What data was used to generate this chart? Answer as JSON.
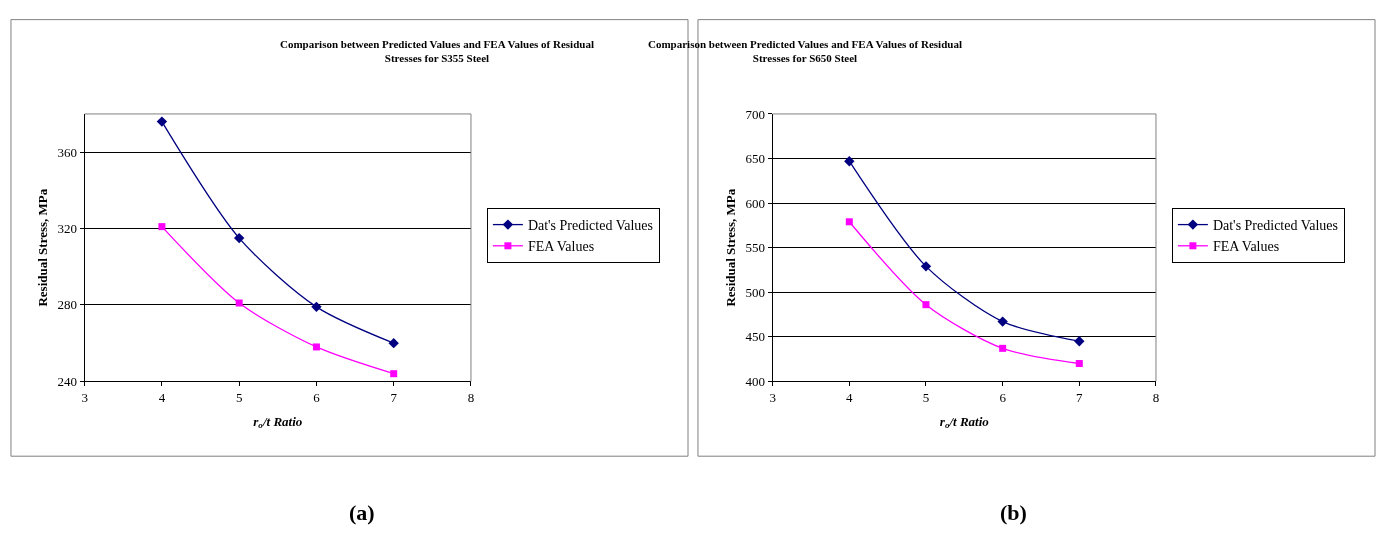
{
  "chart_data": [
    {
      "type": "line",
      "title": "Comparison between Predicted Values and FEA Values of Residual Stresses for S355 Steel",
      "xlabel": "r$_{o}$/t Ratio",
      "ylabel": "Residual Stress, MPa",
      "x": [
        4,
        5,
        6,
        7
      ],
      "series": [
        {
          "name": "Dat's Predicted Values",
          "color": "#000080",
          "marker": "diamond",
          "values": [
            376,
            315,
            279,
            260
          ]
        },
        {
          "name": "FEA Values",
          "color": "#ff00ff",
          "marker": "square",
          "values": [
            321,
            281,
            258,
            244
          ]
        }
      ],
      "xlim": [
        3,
        8
      ],
      "xticks": [
        3,
        4,
        5,
        6,
        7,
        8
      ],
      "ylim": [
        240,
        380
      ],
      "yticks": [
        240,
        280,
        320,
        360
      ],
      "grid": "y",
      "legend": "right",
      "annotations": [
        "(a)"
      ]
    },
    {
      "type": "line",
      "title": "Comparison between Predicted Values and FEA Values of Residual Stresses for S650 Steel",
      "xlabel": "r$_{o}$/t Ratio",
      "ylabel": "Residual Stress, MPa",
      "x": [
        4,
        5,
        6,
        7
      ],
      "series": [
        {
          "name": "Dat's Predicted Values",
          "color": "#000080",
          "marker": "diamond",
          "values": [
            647,
            529,
            467,
            445
          ]
        },
        {
          "name": "FEA Values",
          "color": "#ff00ff",
          "marker": "square",
          "values": [
            579,
            486,
            437,
            420
          ]
        }
      ],
      "xlim": [
        3,
        8
      ],
      "xticks": [
        3,
        4,
        5,
        6,
        7,
        8
      ],
      "ylim": [
        400,
        700
      ],
      "yticks": [
        400,
        450,
        500,
        550,
        600,
        650,
        700
      ],
      "grid": "y",
      "legend": "right",
      "annotations": [
        "(b)"
      ]
    }
  ]
}
